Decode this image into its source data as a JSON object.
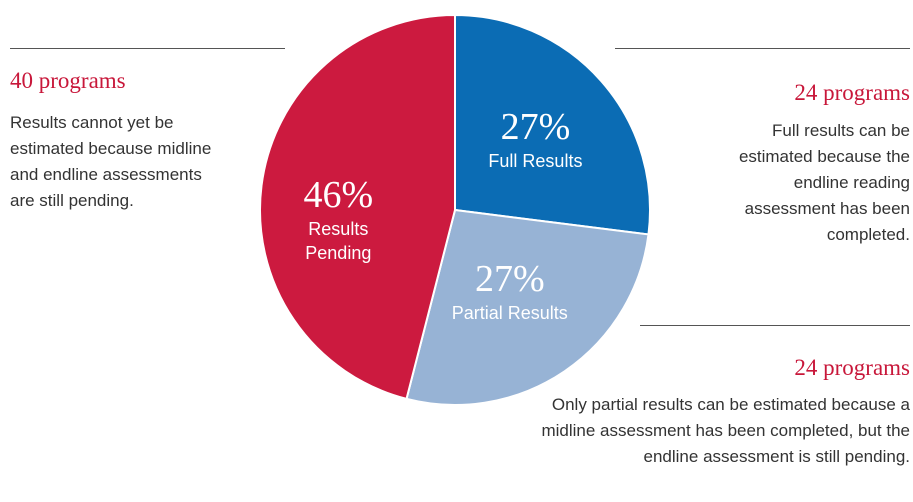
{
  "chart_data": {
    "type": "pie",
    "categories": [
      "Full Results",
      "Partial Results",
      "Results Pending"
    ],
    "values": [
      27,
      27,
      46
    ],
    "value_labels": [
      "27%",
      "27%",
      "46%"
    ],
    "colors": [
      "#0b6cb4",
      "#97b3d5",
      "#cc1a3f"
    ],
    "annotations": [
      {
        "heading": "40 programs",
        "text": "Results cannot yet be estimated because midline and endline assessments are still pending."
      },
      {
        "heading": "24 programs",
        "text": "Full results can be estimated because the endline reading assessment has been completed."
      },
      {
        "heading": "24 programs",
        "text": "Only partial results can be estimated because a midline assessment has been completed, but the endline assessment is still pending."
      }
    ]
  }
}
